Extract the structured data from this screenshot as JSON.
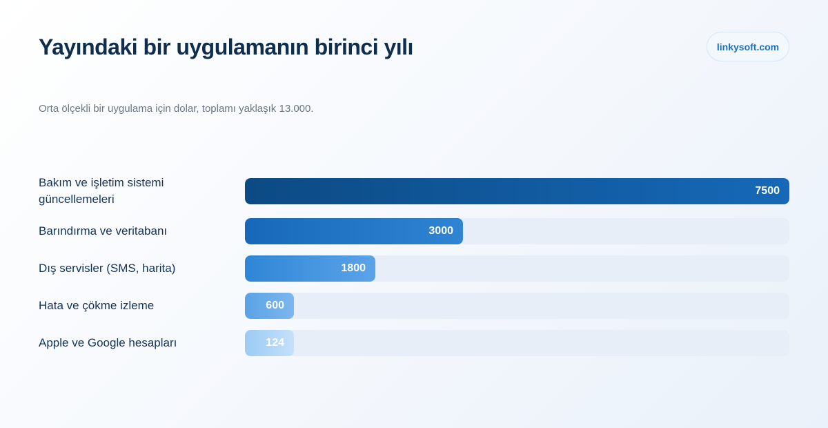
{
  "header": {
    "title": "Yayındaki bir uygulamanın birinci yılı",
    "subtitle": "Orta ölçekli bir uygulama için dolar, toplamı yaklaşık 13.000.",
    "brand": "linkysoft.com"
  },
  "chart_data": {
    "type": "bar",
    "orientation": "horizontal",
    "title": "Yayındaki bir uygulamanın birinci yılı",
    "subtitle": "Orta ölçekli bir uygulama için dolar, toplamı yaklaşık 13.000.",
    "categories": [
      "Bakım ve işletim sistemi güncellemeleri",
      "Barındırma ve veritabanı",
      "Dış servisler (SMS, harita)",
      "Hata ve çökme izleme",
      "Apple ve Google hesapları"
    ],
    "values": [
      7500,
      3000,
      1800,
      600,
      124
    ],
    "value_labels": [
      "7500",
      "3000",
      "1800",
      "600",
      "124"
    ],
    "xlim": [
      0,
      7500
    ],
    "grid": false,
    "legend": "none",
    "colors": {
      "bar_start": [
        "#0c4a83",
        "#1768b8",
        "#2f86d6",
        "#5aa2e6",
        "#9ccbf4"
      ],
      "bar_end": [
        "#1669b8",
        "#2f84d3",
        "#5aa3e8",
        "#7cb7ee",
        "#c4e0fa"
      ],
      "track": "#e7eef8"
    }
  }
}
